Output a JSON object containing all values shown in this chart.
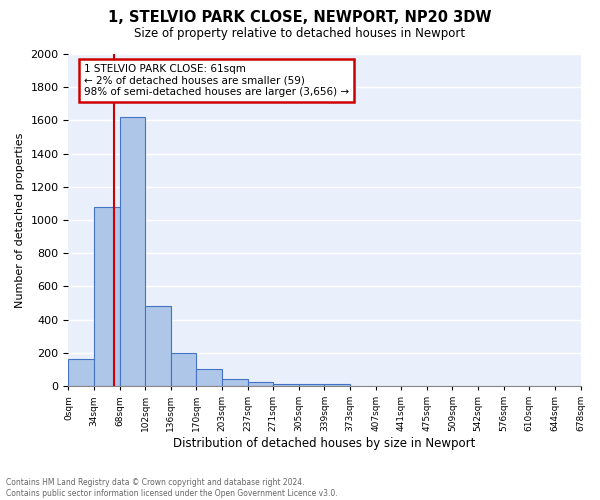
{
  "title1": "1, STELVIO PARK CLOSE, NEWPORT, NP20 3DW",
  "title2": "Size of property relative to detached houses in Newport",
  "xlabel": "Distribution of detached houses by size in Newport",
  "ylabel": "Number of detached properties",
  "footnote": "Contains HM Land Registry data © Crown copyright and database right 2024.\nContains public sector information licensed under the Open Government Licence v3.0.",
  "bin_labels": [
    "0sqm",
    "34sqm",
    "68sqm",
    "102sqm",
    "136sqm",
    "170sqm",
    "203sqm",
    "237sqm",
    "271sqm",
    "305sqm",
    "339sqm",
    "373sqm",
    "407sqm",
    "441sqm",
    "475sqm",
    "509sqm",
    "542sqm",
    "576sqm",
    "610sqm",
    "644sqm",
    "678sqm"
  ],
  "bar_values": [
    160,
    1080,
    1620,
    480,
    200,
    100,
    40,
    27,
    15,
    15,
    15,
    0,
    0,
    0,
    0,
    0,
    0,
    0,
    0,
    0
  ],
  "bar_color": "#aec6e8",
  "bar_edge_color": "#4472c4",
  "background_color": "#eaf0fb",
  "grid_color": "#ffffff",
  "annotation_text": "1 STELVIO PARK CLOSE: 61sqm\n← 2% of detached houses are smaller (59)\n98% of semi-detached houses are larger (3,656) →",
  "annotation_box_color": "#ffffff",
  "annotation_border_color": "#cc0000",
  "ylim": [
    0,
    2000
  ],
  "yticks": [
    0,
    200,
    400,
    600,
    800,
    1000,
    1200,
    1400,
    1600,
    1800,
    2000
  ]
}
